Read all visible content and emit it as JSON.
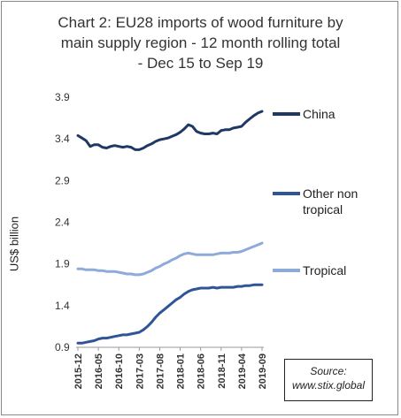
{
  "chart_data": {
    "type": "line",
    "title_lines": [
      "Chart 2: EU28 imports of wood furniture by",
      "main supply region - 12 month rolling total",
      "- Dec 15 to Sep 19"
    ],
    "xlabel": "",
    "ylabel": "US$ billion",
    "ylim": [
      0.9,
      3.9
    ],
    "y_ticks": [
      "0.9",
      "1.4",
      "1.9",
      "2.4",
      "2.9",
      "3.4",
      "3.9"
    ],
    "x_tick_labels": [
      "2015-12",
      "2016-05",
      "2016-10",
      "2017-03",
      "2017-08",
      "2018-01",
      "2018-06",
      "2018-11",
      "2019-04",
      "2019-09"
    ],
    "x": [
      "2015-12",
      "2016-01",
      "2016-02",
      "2016-03",
      "2016-04",
      "2016-05",
      "2016-06",
      "2016-07",
      "2016-08",
      "2016-09",
      "2016-10",
      "2016-11",
      "2016-12",
      "2017-01",
      "2017-02",
      "2017-03",
      "2017-04",
      "2017-05",
      "2017-06",
      "2017-07",
      "2017-08",
      "2017-09",
      "2017-10",
      "2017-11",
      "2017-12",
      "2018-01",
      "2018-02",
      "2018-03",
      "2018-04",
      "2018-05",
      "2018-06",
      "2018-07",
      "2018-08",
      "2018-09",
      "2018-10",
      "2018-11",
      "2018-12",
      "2019-01",
      "2019-02",
      "2019-03",
      "2019-04",
      "2019-05",
      "2019-06",
      "2019-07",
      "2019-08",
      "2019-09"
    ],
    "series": [
      {
        "name": "China",
        "color": "#1f3864",
        "values": [
          3.44,
          3.41,
          3.38,
          3.31,
          3.33,
          3.33,
          3.3,
          3.29,
          3.31,
          3.32,
          3.31,
          3.3,
          3.31,
          3.3,
          3.27,
          3.27,
          3.29,
          3.32,
          3.34,
          3.37,
          3.39,
          3.4,
          3.41,
          3.43,
          3.45,
          3.48,
          3.52,
          3.57,
          3.55,
          3.49,
          3.47,
          3.46,
          3.46,
          3.47,
          3.46,
          3.5,
          3.51,
          3.51,
          3.53,
          3.54,
          3.55,
          3.6,
          3.64,
          3.68,
          3.71,
          3.73
        ]
      },
      {
        "name": "Other non tropical",
        "color": "#2f5597",
        "values": [
          0.95,
          0.95,
          0.96,
          0.97,
          0.98,
          1.0,
          1.01,
          1.01,
          1.02,
          1.03,
          1.04,
          1.05,
          1.05,
          1.06,
          1.07,
          1.08,
          1.11,
          1.15,
          1.2,
          1.26,
          1.31,
          1.35,
          1.39,
          1.43,
          1.47,
          1.5,
          1.54,
          1.57,
          1.59,
          1.6,
          1.61,
          1.61,
          1.61,
          1.62,
          1.61,
          1.62,
          1.62,
          1.62,
          1.62,
          1.63,
          1.63,
          1.64,
          1.64,
          1.65,
          1.65,
          1.65
        ]
      },
      {
        "name": "Tropical",
        "color": "#8eaadb",
        "values": [
          1.84,
          1.84,
          1.83,
          1.83,
          1.83,
          1.82,
          1.82,
          1.81,
          1.81,
          1.81,
          1.8,
          1.79,
          1.78,
          1.78,
          1.77,
          1.77,
          1.78,
          1.8,
          1.82,
          1.85,
          1.87,
          1.9,
          1.92,
          1.95,
          1.97,
          2.0,
          2.02,
          2.03,
          2.02,
          2.01,
          2.01,
          2.01,
          2.01,
          2.01,
          2.02,
          2.03,
          2.03,
          2.03,
          2.04,
          2.04,
          2.05,
          2.07,
          2.09,
          2.11,
          2.13,
          2.15
        ]
      }
    ],
    "legend_position": "right",
    "grid": false
  },
  "source_lines": [
    "Source:",
    "www.stix.global"
  ]
}
